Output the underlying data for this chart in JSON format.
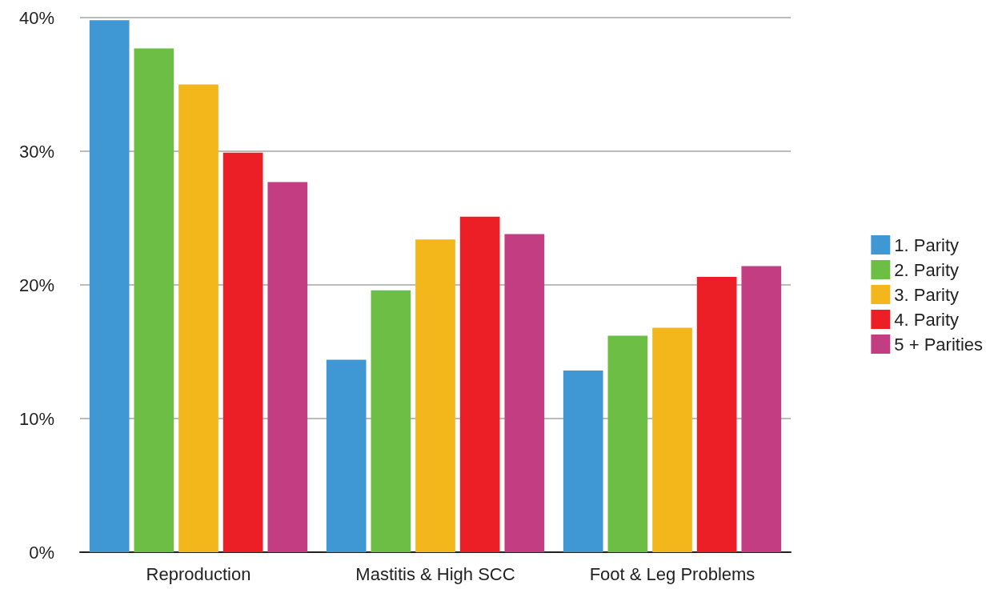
{
  "chart_data": {
    "type": "bar",
    "categories": [
      "Reproduction",
      "Mastitis & High SCC",
      "Foot & Leg Problems"
    ],
    "series": [
      {
        "name": "1. Parity",
        "color": "#3f97d4",
        "values": [
          39.8,
          14.4,
          13.6
        ]
      },
      {
        "name": "2. Parity",
        "color": "#6dbe45",
        "values": [
          37.7,
          19.6,
          16.2
        ]
      },
      {
        "name": "3. Parity",
        "color": "#f3b71c",
        "values": [
          35.0,
          23.4,
          16.8
        ]
      },
      {
        "name": "4. Parity",
        "color": "#ed1f26",
        "values": [
          29.9,
          25.1,
          20.6
        ]
      },
      {
        "name": "5 + Parities",
        "color": "#c23d82",
        "values": [
          27.7,
          23.8,
          21.4
        ]
      }
    ],
    "ylim": [
      0,
      40
    ],
    "yticks": [
      {
        "value": 0,
        "label": "0%"
      },
      {
        "value": 10,
        "label": "10%"
      },
      {
        "value": 20,
        "label": "20%"
      },
      {
        "value": 30,
        "label": "30%"
      },
      {
        "value": 40,
        "label": "40%"
      }
    ],
    "grid": "y",
    "legend": "right"
  }
}
